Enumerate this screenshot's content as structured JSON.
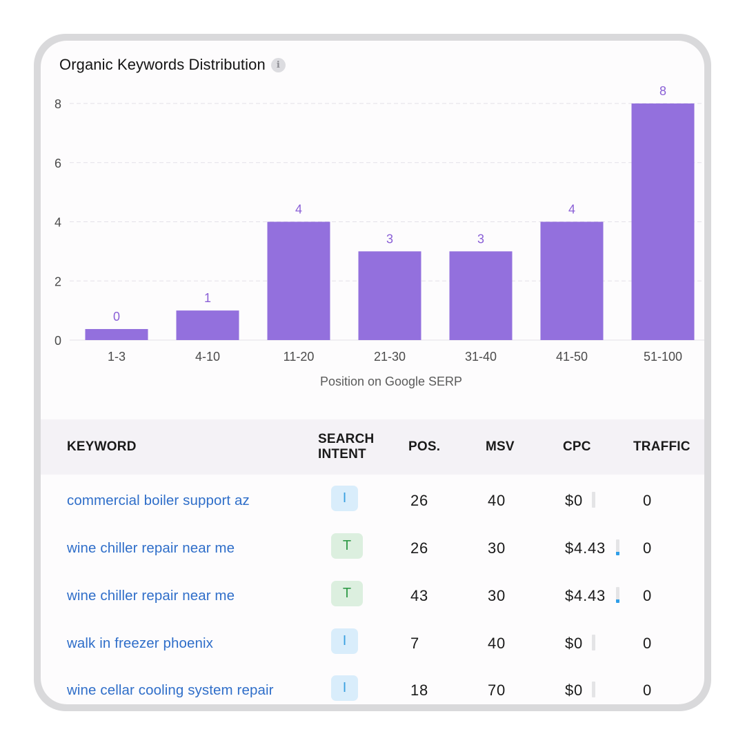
{
  "card": {
    "title": "Organic Keywords Distribution",
    "info_icon": "i"
  },
  "chart_data": {
    "type": "bar",
    "title": "Organic Keywords Distribution",
    "xlabel": "Position on Google SERP",
    "ylabel": "",
    "categories": [
      "1-3",
      "4-10",
      "11-20",
      "21-30",
      "31-40",
      "41-50",
      "51-100"
    ],
    "values": [
      0,
      1,
      4,
      3,
      3,
      4,
      8
    ],
    "ylim": [
      0,
      8
    ],
    "yticks": [
      0,
      2,
      4,
      6,
      8
    ],
    "grid": true,
    "bar_color": "#9370dd",
    "label_color": "#8a5fd6"
  },
  "table": {
    "headers": {
      "keyword": "KEYWORD",
      "intent_line1": "SEARCH",
      "intent_line2": "INTENT",
      "pos": "POS.",
      "msv": "MSV",
      "cpc": "CPC",
      "traffic": "TRAFFIC"
    },
    "rows": [
      {
        "keyword": "commercial boiler support az",
        "intent": "I",
        "pos": "26",
        "msv": "40",
        "cpc": "$0",
        "cpc_level": 0,
        "traffic": "0"
      },
      {
        "keyword": "wine chiller repair near me",
        "intent": "T",
        "pos": "26",
        "msv": "30",
        "cpc": "$4.43",
        "cpc_level": 0.22,
        "traffic": "0"
      },
      {
        "keyword": "wine chiller repair near me",
        "intent": "T",
        "pos": "43",
        "msv": "30",
        "cpc": "$4.43",
        "cpc_level": 0.22,
        "traffic": "0"
      },
      {
        "keyword": "walk in freezer phoenix",
        "intent": "I",
        "pos": "7",
        "msv": "40",
        "cpc": "$0",
        "cpc_level": 0,
        "traffic": "0"
      },
      {
        "keyword": "wine cellar cooling system repair",
        "intent": "I",
        "pos": "18",
        "msv": "70",
        "cpc": "$0",
        "cpc_level": 0,
        "traffic": "0"
      }
    ]
  },
  "colors": {
    "accent": "#9370dd",
    "link": "#2f6ec9",
    "intent_informational": "#3aa0e0",
    "intent_transactional": "#2f9a48"
  }
}
